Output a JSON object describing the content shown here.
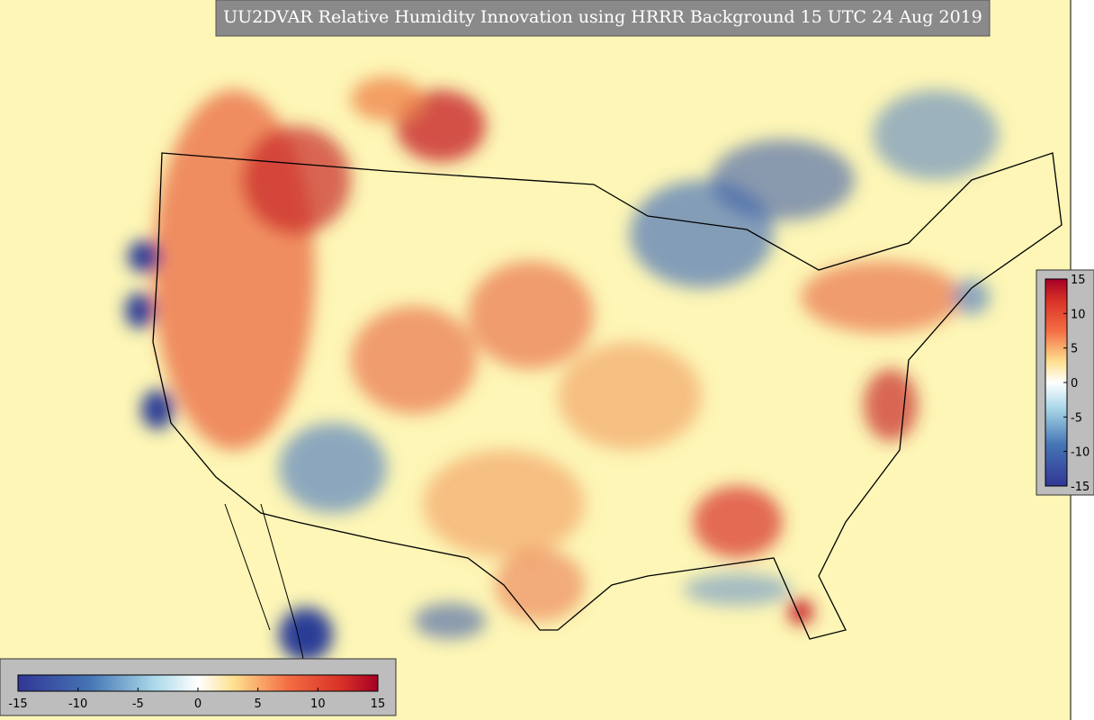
{
  "title": "UU2DVAR Relative Humidity Innovation using HRRR Background 15 UTC 24 Aug 2019",
  "colorbar_horizontal": {
    "ticks": [
      -15,
      -10,
      -5,
      0,
      5,
      10,
      15
    ]
  },
  "colorbar_vertical": {
    "ticks": [
      -15,
      -10,
      -5,
      0,
      5,
      10,
      15
    ]
  }
}
